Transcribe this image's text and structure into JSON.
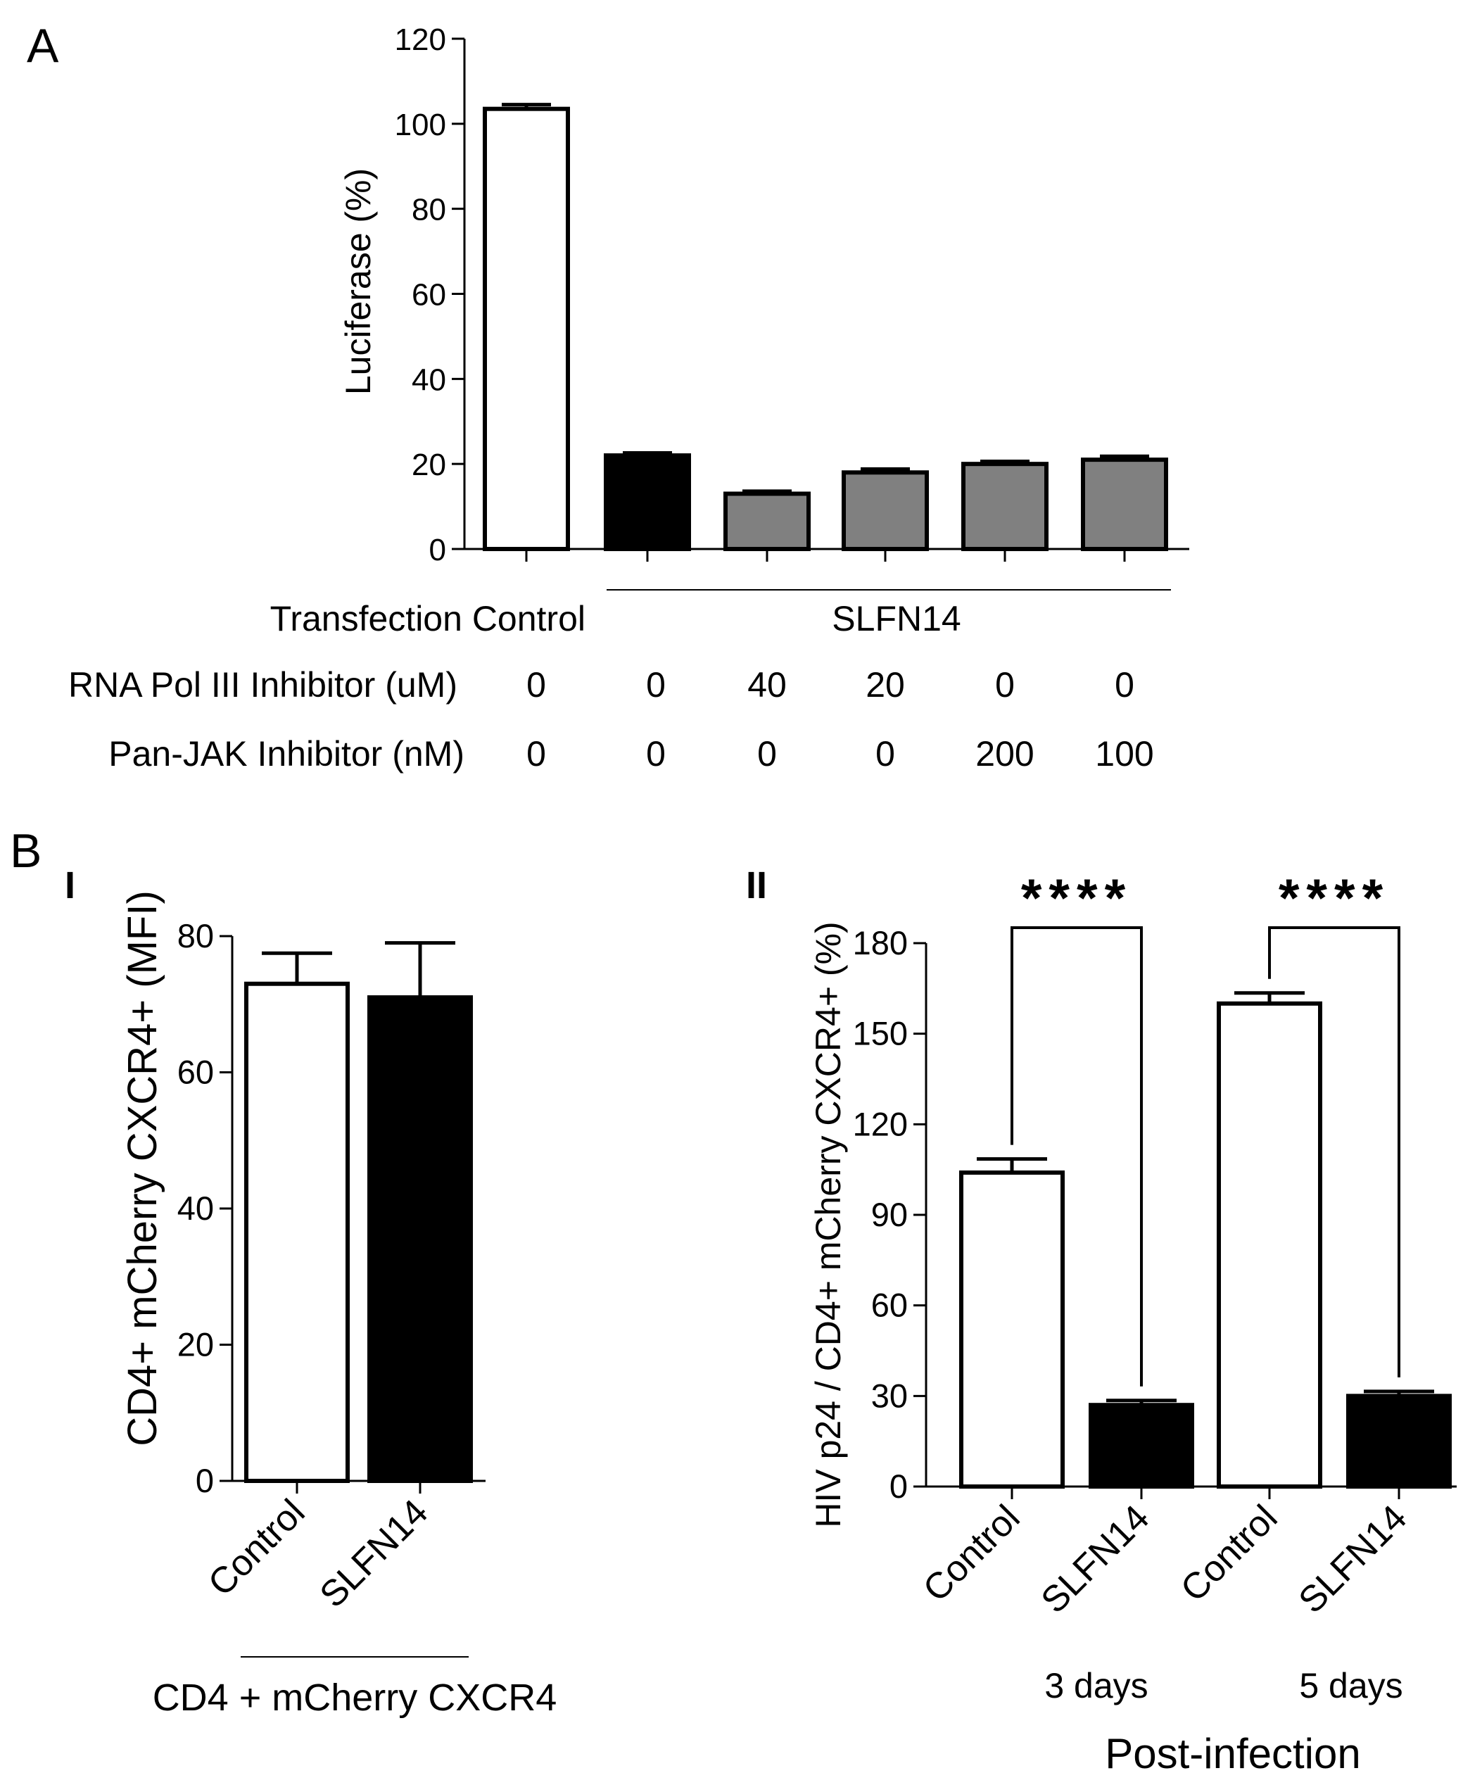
{
  "chart_data": [
    {
      "panel": "A",
      "type": "bar",
      "ylabel": "Luciferase (%)",
      "ylim": [
        0,
        120
      ],
      "yticks": [
        0,
        20,
        40,
        60,
        80,
        100,
        120
      ],
      "values": [
        103.5,
        22,
        13,
        18,
        20,
        21
      ],
      "errors": [
        1,
        0.6,
        0.6,
        0.8,
        0.6,
        0.8
      ],
      "colors": [
        "#ffffff",
        "#000000",
        "#808080",
        "#808080",
        "#808080",
        "#808080"
      ],
      "group_labels": [
        "Transfection Control",
        "SLFN14"
      ],
      "conditions": [
        {
          "label": "RNA Pol III Inhibitor (uM)",
          "values": [
            "0",
            "0",
            "40",
            "20",
            "0",
            "0"
          ]
        },
        {
          "label": "Pan-JAK Inhibitor (nM)",
          "values": [
            "0",
            "0",
            "0",
            "0",
            "200",
            "100"
          ]
        }
      ]
    },
    {
      "panel": "B",
      "subpanel": "I",
      "type": "bar",
      "ylabel": "CD4+ mCherry CXCR4+ (MFI)",
      "ylim": [
        0,
        80
      ],
      "yticks": [
        0,
        20,
        40,
        60,
        80
      ],
      "categories": [
        "Control",
        "SLFN14"
      ],
      "values": [
        73,
        71
      ],
      "errors": [
        4.5,
        8
      ],
      "colors": [
        "#ffffff",
        "#000000"
      ],
      "group_label": "CD4 + mCherry CXCR4"
    },
    {
      "panel": "B",
      "subpanel": "II",
      "type": "bar",
      "ylabel": "HIV p24 / CD4+ mCherry CXCR4+ (%)",
      "ylim": [
        0,
        180
      ],
      "yticks": [
        0,
        30,
        60,
        90,
        120,
        150,
        180
      ],
      "categories": [
        "Control",
        "SLFN14",
        "Control",
        "SLFN14"
      ],
      "values": [
        104,
        27,
        160,
        30
      ],
      "errors": [
        4.5,
        1.5,
        3.5,
        1.5
      ],
      "colors": [
        "#ffffff",
        "#000000",
        "#ffffff",
        "#000000"
      ],
      "groups": [
        "3 days",
        "5 days"
      ],
      "xlabel": "Post-infection",
      "significance": "****"
    }
  ]
}
